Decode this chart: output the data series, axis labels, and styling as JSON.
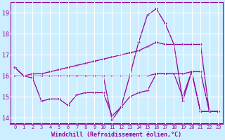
{
  "xlabel": "Windchill (Refroidissement éolien,°C)",
  "bg_color": "#cceeff",
  "line_color": "#990099",
  "grid_color": "#ffffff",
  "xlim": [
    -0.5,
    23.5
  ],
  "ylim": [
    13.7,
    19.5
  ],
  "yticks": [
    14,
    15,
    16,
    17,
    18,
    19
  ],
  "xticks": [
    0,
    1,
    2,
    3,
    4,
    5,
    6,
    7,
    8,
    9,
    10,
    11,
    12,
    13,
    14,
    15,
    16,
    17,
    18,
    19,
    20,
    21,
    22,
    23
  ],
  "series": [
    [
      16.4,
      16.0,
      15.9,
      14.8,
      14.9,
      14.9,
      14.6,
      15.1,
      15.2,
      15.2,
      15.2,
      14.1,
      14.5,
      15.0,
      15.2,
      15.3,
      16.1,
      16.1,
      16.1,
      15.0,
      16.2,
      14.3,
      14.3,
      14.3
    ],
    [
      16.0,
      16.0,
      16.0,
      16.0,
      16.0,
      16.0,
      16.0,
      16.0,
      16.0,
      16.0,
      16.0,
      16.0,
      16.0,
      16.0,
      16.0,
      16.0,
      16.1,
      16.1,
      16.1,
      16.1,
      16.2,
      16.2,
      14.3,
      14.3
    ],
    [
      16.0,
      16.0,
      16.1,
      16.1,
      16.2,
      16.3,
      16.4,
      16.5,
      16.6,
      16.7,
      16.8,
      16.9,
      17.0,
      17.1,
      17.2,
      17.4,
      17.6,
      17.5,
      17.5,
      17.5,
      17.5,
      17.5,
      14.3,
      14.3
    ],
    [
      16.4,
      16.0,
      16.0,
      16.0,
      16.0,
      16.0,
      16.0,
      16.0,
      16.0,
      16.0,
      16.0,
      13.9,
      14.5,
      16.0,
      17.6,
      18.9,
      19.2,
      18.5,
      17.5,
      14.8,
      16.2,
      14.3,
      14.3,
      14.3
    ]
  ]
}
